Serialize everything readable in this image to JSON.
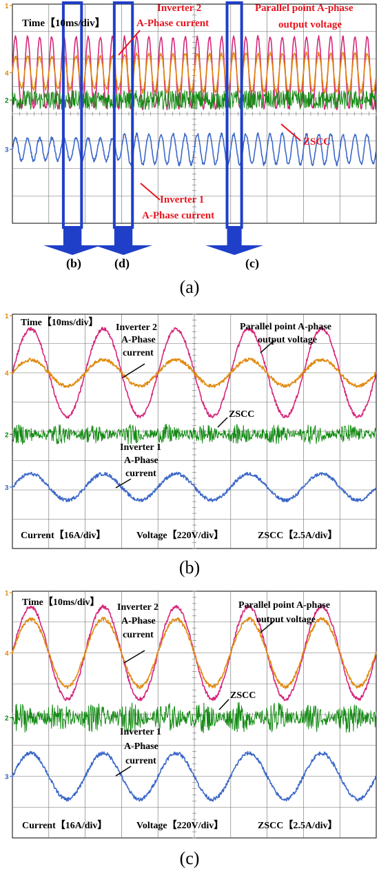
{
  "figure": {
    "panels": [
      {
        "id": "a",
        "caption": "(a)",
        "zoom_labels": [
          "(b)",
          "(d)",
          "(c)"
        ],
        "annotations": {
          "time_scale": "Time【10ms/div】",
          "inverter2": [
            "Inverter 2",
            "A-Phase current"
          ],
          "voltage": [
            "Parallel point A-phase",
            "output voltage"
          ],
          "zscc": "ZSCC",
          "inverter1": [
            "Inverter 1",
            "A-Phase current"
          ]
        }
      },
      {
        "id": "b",
        "caption": "(b)",
        "annotations": {
          "time_scale": "Time【10ms/div】",
          "inverter2": [
            "Inverter 2",
            "A-Phase",
            "current"
          ],
          "voltage": [
            "Parallel point A-phase",
            "output voltage"
          ],
          "zscc": "ZSCC",
          "inverter1": [
            "Inverter 1",
            "A-Phase",
            "current"
          ],
          "scales": [
            "Current【16A/div】",
            "Voltage【220V/div】",
            "ZSCC【2.5A/div】"
          ]
        }
      },
      {
        "id": "c",
        "caption": "(c)",
        "annotations": {
          "time_scale": "Time【10ms/div】",
          "inverter2": [
            "Inverter 2",
            "A-Phase",
            "current"
          ],
          "voltage": [
            "Parallel point A-phase",
            "output voltage"
          ],
          "zscc": "ZSCC",
          "inverter1": [
            "Inverter 1",
            "A-Phase",
            "current"
          ],
          "scales": [
            "Current【16A/div】",
            "Voltage【220V/div】",
            "ZSCC【2.5A/div】"
          ]
        }
      }
    ],
    "colors": {
      "voltage": "#d6267a",
      "inverter2": "#e08a10",
      "zscc": "#138a13",
      "inverter1": "#3c68c8",
      "zoom_box": "#1f3fc8",
      "annotation_a": "#e8141e",
      "annotation_bc": "#000000",
      "grid": "#6a6a6a"
    },
    "channel_markers": [
      "1",
      "4",
      "2",
      "3"
    ]
  },
  "chart_data": [
    {
      "type": "line",
      "panel": "a",
      "title": "",
      "xlabel": "Time【10ms/div】",
      "x_divisions": 10,
      "y_divisions": 8,
      "xlim_ms": [
        0,
        100
      ],
      "series": [
        {
          "name": "Parallel point A-phase output voltage",
          "channel": "4",
          "amplitude_div": 1.3,
          "offset_div": 5.5,
          "frequency_hz": 50
        },
        {
          "name": "Inverter 2 A-Phase current",
          "channel": "4",
          "amplitude_div": 0.7,
          "offset_div": 5.5,
          "frequency_hz": 50,
          "events_ms": [
            30
          ]
        },
        {
          "name": "ZSCC",
          "channel": "2",
          "amplitude_div": 0.35,
          "offset_div": 4.5,
          "noise": true
        },
        {
          "name": "Inverter 1 A-Phase current",
          "channel": "3",
          "amplitude_div": 0.55,
          "offset_div": 2.7,
          "frequency_hz": 50,
          "events_ms": [
            30
          ]
        }
      ],
      "zoom_windows_ms": [
        [
          14,
          19
        ],
        [
          28,
          33
        ],
        [
          59,
          63
        ]
      ]
    },
    {
      "type": "line",
      "panel": "b",
      "title": "",
      "xlabel": "Time【10ms/div】",
      "x_divisions": 10,
      "y_divisions": 8,
      "xlim_ms": [
        0,
        100
      ],
      "series": [
        {
          "name": "Parallel point A-phase output voltage",
          "channel": "4",
          "amplitude_div": 1.5,
          "offset_div": 6.0,
          "frequency_hz": 50,
          "phase_deg": 0
        },
        {
          "name": "Inverter 2 A-Phase current",
          "channel": "4",
          "amplitude_div": 0.45,
          "offset_div": 6.0,
          "frequency_hz": 50,
          "phase_deg": 0
        },
        {
          "name": "ZSCC",
          "channel": "2",
          "amplitude_div": 0.35,
          "offset_div": 3.9,
          "noise": true
        },
        {
          "name": "Inverter 1 A-Phase current",
          "channel": "3",
          "amplitude_div": 0.45,
          "offset_div": 2.1,
          "frequency_hz": 50,
          "phase_deg": 0
        }
      ]
    },
    {
      "type": "line",
      "panel": "c",
      "title": "",
      "xlabel": "Time【10ms/div】",
      "x_divisions": 10,
      "y_divisions": 8,
      "xlim_ms": [
        0,
        100
      ],
      "series": [
        {
          "name": "Parallel point A-phase output voltage",
          "channel": "4",
          "amplitude_div": 1.5,
          "offset_div": 6.0,
          "frequency_hz": 50,
          "phase_deg": 0
        },
        {
          "name": "Inverter 2 A-Phase current",
          "channel": "4",
          "amplitude_div": 1.1,
          "offset_div": 6.0,
          "frequency_hz": 50,
          "phase_deg": 0
        },
        {
          "name": "ZSCC",
          "channel": "2",
          "amplitude_div": 0.5,
          "offset_div": 3.9,
          "noise": true
        },
        {
          "name": "Inverter 1 A-Phase current",
          "channel": "3",
          "amplitude_div": 0.75,
          "offset_div": 2.0,
          "frequency_hz": 50,
          "phase_deg": 0
        }
      ]
    }
  ]
}
